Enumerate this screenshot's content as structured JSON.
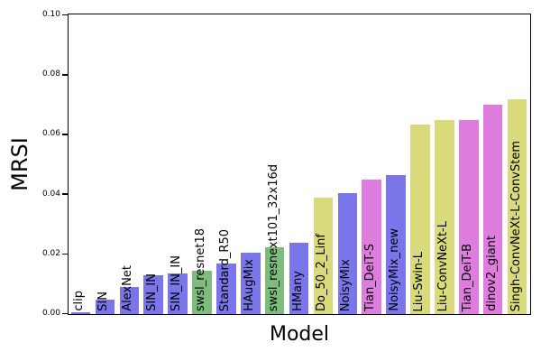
{
  "chart_data": {
    "type": "bar",
    "title": "",
    "xlabel": "Model",
    "ylabel": "MRSI",
    "ylim": [
      0,
      0.1
    ],
    "grid": false,
    "legend": null,
    "ytick_values": [
      0,
      0.02,
      0.04,
      0.06,
      0.08,
      0.1
    ],
    "ytick_labels": [
      "0.00",
      "0.02",
      "0.04",
      "0.06",
      "0.08",
      "0.10"
    ],
    "categories": [
      "clip",
      "SIN",
      "AlexNet",
      "SIN_IN",
      "SIN_IN_IN",
      "swsl_resnet18",
      "Standard_R50",
      "HAugMix",
      "swsl_resnext101_32x16d",
      "HMany",
      "Do_50_2_Linf",
      "NoisyMix",
      "Tian_DeiT-S",
      "NoisyMix_new",
      "Liu-Swin-L",
      "Liu-ConvNeXt-L",
      "Tian_DeiT-B",
      "dinov2_giant",
      "Singh-ConvNeXt-L-ConvStem"
    ],
    "values": [
      0.0005,
      0.005,
      0.009,
      0.013,
      0.0135,
      0.0145,
      0.017,
      0.0205,
      0.0225,
      0.024,
      0.039,
      0.0405,
      0.045,
      0.0465,
      0.0635,
      0.065,
      0.065,
      0.07,
      0.072
    ],
    "bar_colors": [
      "#7b75ea",
      "#7b75ea",
      "#7b75ea",
      "#7b75ea",
      "#7b75ea",
      "#7dbc7d",
      "#7b75ea",
      "#7b75ea",
      "#7dbc7d",
      "#7b75ea",
      "#d9da7b",
      "#7b75ea",
      "#df7dde",
      "#7b75ea",
      "#d9da7b",
      "#d9da7b",
      "#df7dde",
      "#df7dde",
      "#d9da7b"
    ],
    "palette": {
      "blue": "#7b75ea",
      "green": "#7dbc7d",
      "yellow": "#d9da7b",
      "pink": "#df7dde"
    },
    "axis_color": "#000000",
    "background_color": "#ffffff"
  }
}
